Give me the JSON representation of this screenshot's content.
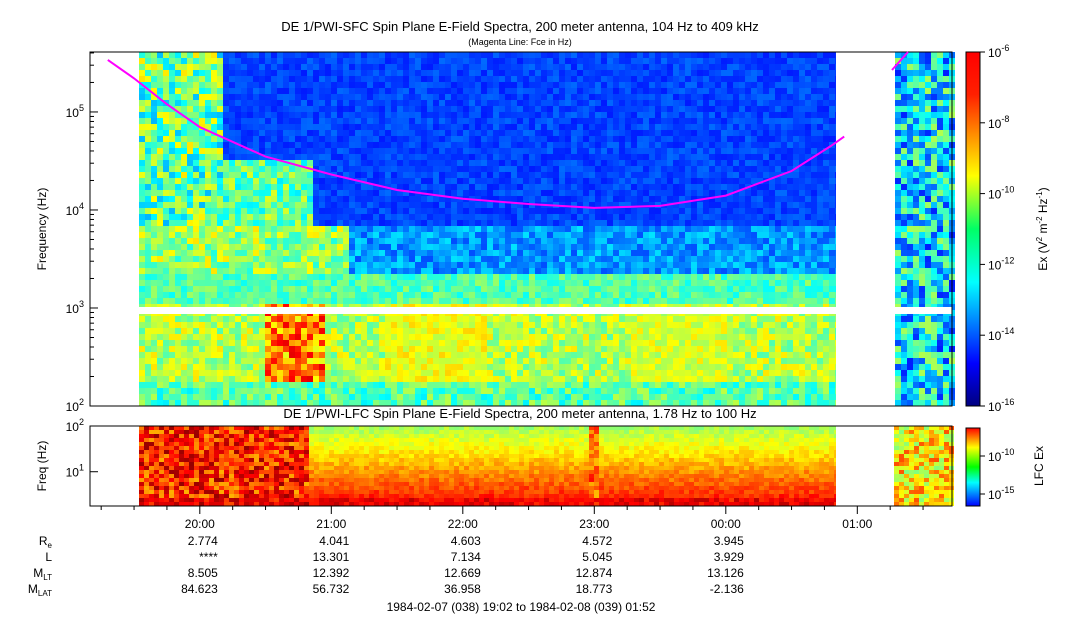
{
  "chart_data": [
    {
      "type": "heatmap",
      "title": "DE 1/PWI-SFC  Spin Plane E-Field Spectra, 200 meter antenna, 104 Hz to 409 kHz",
      "subtitle": "(Magenta Line: Fce in Hz)",
      "ylabel": "Frequency (Hz)",
      "yscale": "log",
      "ylim": [
        100,
        409000
      ],
      "yticks": [
        {
          "value": 100,
          "base": "10",
          "exp": "2"
        },
        {
          "value": 1000,
          "base": "10",
          "exp": "3"
        },
        {
          "value": 10000,
          "base": "10",
          "exp": "4"
        },
        {
          "value": 100000,
          "base": "10",
          "exp": "5"
        }
      ],
      "colorbar": {
        "label": "Ex (V",
        "label_sup1": "2",
        "label_mid": " m",
        "label_sup2": "-2",
        "label_mid2": " Hz",
        "label_sup3": "-1",
        "label_end": ")",
        "scale": "log",
        "range": [
          1e-16,
          1e-06
        ],
        "ticks": [
          {
            "value": 1e-06,
            "base": "10",
            "exp": "-6"
          },
          {
            "value": 1e-08,
            "base": "10",
            "exp": "-8"
          },
          {
            "value": 1e-10,
            "base": "10",
            "exp": "-10"
          },
          {
            "value": 1e-12,
            "base": "10",
            "exp": "-12"
          },
          {
            "value": 1e-14,
            "base": "10",
            "exp": "-14"
          },
          {
            "value": 1e-16,
            "base": "10",
            "exp": "-16"
          }
        ]
      },
      "fce_line": {
        "color": "#ff00ff",
        "points": [
          {
            "t": 19.3,
            "f": 340000
          },
          {
            "t": 19.5,
            "f": 220000
          },
          {
            "t": 19.75,
            "f": 120000
          },
          {
            "t": 20.0,
            "f": 70000
          },
          {
            "t": 20.5,
            "f": 35000
          },
          {
            "t": 21.0,
            "f": 23000
          },
          {
            "t": 21.5,
            "f": 16000
          },
          {
            "t": 22.0,
            "f": 13000
          },
          {
            "t": 22.5,
            "f": 11500
          },
          {
            "t": 23.0,
            "f": 10500
          },
          {
            "t": 23.5,
            "f": 11000
          },
          {
            "t": 24.0,
            "f": 14000
          },
          {
            "t": 24.5,
            "f": 25000
          },
          {
            "t": 24.8,
            "f": 45000
          },
          {
            "t": 24.9,
            "f": 56000
          }
        ]
      }
    },
    {
      "type": "heatmap",
      "title": "DE 1/PWI-LFC  Spin Plane E-Field Spectra, 200 meter antenna, 1.78 Hz to 100 Hz",
      "ylabel": "Freq (Hz)",
      "yscale": "log",
      "ylim": [
        1.78,
        100
      ],
      "yticks": [
        {
          "value": 10,
          "base": "10",
          "exp": "1"
        },
        {
          "value": 100,
          "base": "10",
          "exp": "2"
        }
      ],
      "colorbar": {
        "label": "LFC Ex",
        "scale": "log",
        "ticks": [
          {
            "value": 1e-10,
            "base": "10",
            "exp": "-10"
          },
          {
            "value": 1e-15,
            "base": "10",
            "exp": "-15"
          }
        ]
      }
    }
  ],
  "xaxis": {
    "ticks": [
      {
        "t": 20.0,
        "label": "20:00"
      },
      {
        "t": 21.0,
        "label": "21:00"
      },
      {
        "t": 22.0,
        "label": "22:00"
      },
      {
        "t": 23.0,
        "label": "23:00"
      },
      {
        "t": 24.0,
        "label": "00:00"
      },
      {
        "t": 25.0,
        "label": "01:00"
      }
    ],
    "range_label": "1984-02-07 (038) 19:02 to 1984-02-08 (039) 01:52"
  },
  "ephemeris": [
    {
      "name": "R",
      "sub": "e",
      "values": [
        "2.774",
        "4.041",
        "4.603",
        "4.572",
        "3.945"
      ]
    },
    {
      "name": "L",
      "sub": "",
      "values": [
        "****",
        "13.301",
        "7.134",
        "5.045",
        "3.929"
      ]
    },
    {
      "name": "M",
      "sub": "LT",
      "values": [
        "8.505",
        "12.392",
        "12.669",
        "12.874",
        "13.126"
      ]
    },
    {
      "name": "M",
      "sub": "LAT",
      "values": [
        "84.623",
        "56.732",
        "36.958",
        "18.773",
        "-2.136"
      ]
    }
  ]
}
